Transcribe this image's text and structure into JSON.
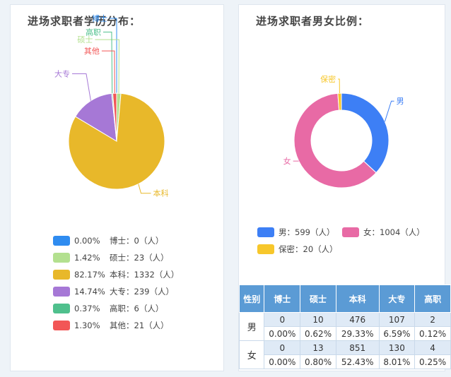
{
  "edu": {
    "title": "进场求职者学历分布：",
    "legend": [
      {
        "pct": "0.00%",
        "text": "博士：0（人）"
      },
      {
        "pct": "1.42%",
        "text": "硕士：23（人）"
      },
      {
        "pct": "82.17%",
        "text": "本科：1332（人）"
      },
      {
        "pct": "14.74%",
        "text": "大专：239（人）"
      },
      {
        "pct": "0.37%",
        "text": "高职：6（人）"
      },
      {
        "pct": "1.30%",
        "text": "其他：21（人）"
      }
    ]
  },
  "gender": {
    "title": "进场求职者男女比例：",
    "legend": [
      {
        "text": "男：599（人）"
      },
      {
        "text": "女：1004（人）"
      },
      {
        "text": "保密：20（人）"
      }
    ]
  },
  "chart_data": [
    {
      "type": "pie",
      "title": "进场求职者学历分布：",
      "categories": [
        "博士",
        "硕士",
        "本科",
        "大专",
        "高职",
        "其他"
      ],
      "values": [
        0,
        23,
        1332,
        239,
        6,
        21
      ],
      "colors": [
        "#2f8cf0",
        "#b3e08f",
        "#e8b82a",
        "#a678d6",
        "#4fc08d",
        "#f25656"
      ]
    },
    {
      "type": "pie",
      "title": "进场求职者男女比例：",
      "categories": [
        "男",
        "女",
        "保密"
      ],
      "values": [
        599,
        1004,
        20
      ],
      "colors": [
        "#3d7ff5",
        "#e86aa5",
        "#f7c72b"
      ]
    }
  ],
  "table": {
    "headers": [
      "性别",
      "博士",
      "硕士",
      "本科",
      "大专",
      "高职"
    ],
    "rows": [
      {
        "gender": "男",
        "counts": [
          "0",
          "10",
          "476",
          "107",
          "2"
        ],
        "pcts": [
          "0.00%",
          "0.62%",
          "29.33%",
          "6.59%",
          "0.12%"
        ]
      },
      {
        "gender": "女",
        "counts": [
          "0",
          "13",
          "851",
          "130",
          "4"
        ],
        "pcts": [
          "0.00%",
          "0.80%",
          "52.43%",
          "8.01%",
          "0.25%"
        ]
      }
    ]
  }
}
